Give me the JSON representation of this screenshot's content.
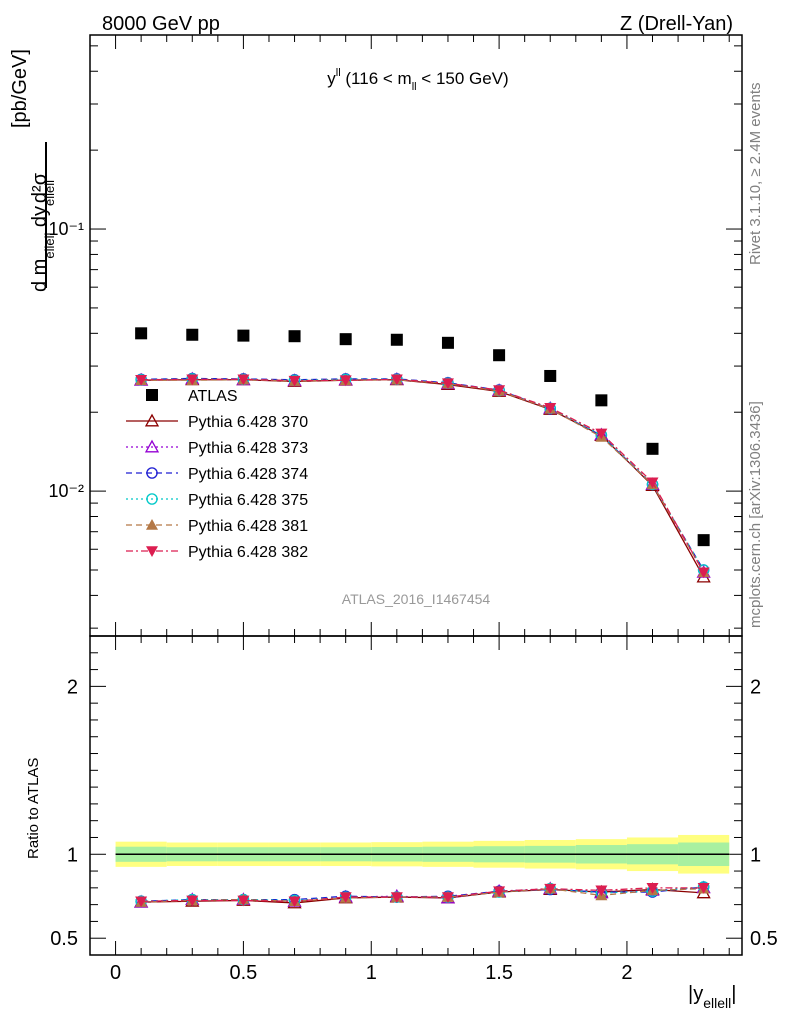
{
  "header": {
    "left": "8000 GeV pp",
    "right": "Z (Drell-Yan)"
  },
  "plot_title": {
    "main": "y",
    "sup": "ll",
    "mid": " (116 < m",
    "sub": "ll",
    "end": " < 150 GeV)"
  },
  "side_labels": {
    "rivet": "Rivet 3.1.10, ≥ 2.4M events",
    "mcplots": "mcplots.cern.ch [arXiv:1306.3436]"
  },
  "watermark": "ATLAS_2016_I1467454",
  "y_axis_label": {
    "numerator": "d²σ",
    "denominator": "d m",
    "denominator_sub": "ellell",
    "denominator_mid": " dy",
    "denominator_sub2": "ellell",
    "unit": "[pb/GeV]"
  },
  "x_axis_label": {
    "main": "|y",
    "sub": "ellell",
    "end": "|"
  },
  "ratio_axis_label": "Ratio to ATLAS",
  "chart_data": [
    {
      "type": "scatter",
      "panel": "main",
      "log_y": true,
      "xlim": [
        -0.1,
        2.45
      ],
      "ylim": [
        0.0028,
        0.55
      ],
      "x": [
        0.1,
        0.3,
        0.5,
        0.7,
        0.9,
        1.1,
        1.3,
        1.5,
        1.7,
        1.9,
        2.1,
        2.3
      ],
      "y_tick_labels": [
        "10⁻²",
        "10⁻¹"
      ],
      "y_ticks": [
        0.01,
        0.1
      ],
      "series": [
        {
          "name": "ATLAS",
          "marker": "square",
          "color": "#000000",
          "line": "none",
          "values": [
            0.04,
            0.0395,
            0.0392,
            0.039,
            0.038,
            0.0378,
            0.0368,
            0.033,
            0.0275,
            0.0222,
            0.0145,
            0.0065
          ]
        },
        {
          "name": "Pythia 6.428 370",
          "marker": "triangle-up-open",
          "color": "#8b0000",
          "line": "solid",
          "values": [
            0.0265,
            0.0266,
            0.0266,
            0.0262,
            0.0265,
            0.0266,
            0.0255,
            0.024,
            0.0205,
            0.0163,
            0.0105,
            0.0047
          ]
        },
        {
          "name": "Pythia 6.428 373",
          "marker": "triangle-up-open",
          "color": "#9400d3",
          "line": "dotted",
          "values": [
            0.0265,
            0.0268,
            0.0266,
            0.0264,
            0.0266,
            0.0267,
            0.0257,
            0.0242,
            0.0207,
            0.0164,
            0.0106,
            0.0049
          ]
        },
        {
          "name": "Pythia 6.428 374",
          "marker": "circle-open",
          "color": "#1e1ed2",
          "line": "dashed",
          "values": [
            0.0267,
            0.0269,
            0.0268,
            0.0266,
            0.0268,
            0.0268,
            0.0259,
            0.0243,
            0.0206,
            0.0163,
            0.0106,
            0.005
          ]
        },
        {
          "name": "Pythia 6.428 375",
          "marker": "circle-open",
          "color": "#00c8c8",
          "line": "dotted",
          "values": [
            0.0266,
            0.0268,
            0.0267,
            0.0265,
            0.0267,
            0.0267,
            0.0258,
            0.0242,
            0.0207,
            0.0164,
            0.0106,
            0.005
          ]
        },
        {
          "name": "Pythia 6.428 381",
          "marker": "triangle-up-filled",
          "color": "#b47846",
          "line": "dashed",
          "values": [
            0.0265,
            0.0265,
            0.0266,
            0.0263,
            0.0265,
            0.0266,
            0.0257,
            0.0241,
            0.0206,
            0.0161,
            0.0106,
            0.0049
          ]
        },
        {
          "name": "Pythia 6.428 382",
          "marker": "triangle-down-filled",
          "color": "#dc1e50",
          "line": "dashdot",
          "values": [
            0.0266,
            0.0267,
            0.0267,
            0.0264,
            0.0265,
            0.0267,
            0.0258,
            0.0243,
            0.0208,
            0.0166,
            0.0108,
            0.0049
          ]
        }
      ]
    },
    {
      "type": "scatter",
      "panel": "ratio",
      "xlim": [
        -0.1,
        2.45
      ],
      "ylim": [
        0.4,
        2.3
      ],
      "x_ticks": [
        0,
        0.5,
        1,
        1.5,
        2
      ],
      "x_tick_labels": [
        "0",
        "0.5",
        "1",
        "1.5",
        "2"
      ],
      "y_ticks": [
        0.5,
        1,
        2
      ],
      "y_tick_labels": [
        "0.5",
        "1",
        "2"
      ],
      "band_edges": [
        0.0,
        0.2,
        0.4,
        0.6,
        0.8,
        1.0,
        1.2,
        1.4,
        1.6,
        1.8,
        2.0,
        2.2,
        2.4
      ],
      "band_inner": [
        0.045,
        0.042,
        0.042,
        0.042,
        0.042,
        0.043,
        0.045,
        0.048,
        0.05,
        0.055,
        0.06,
        0.07
      ],
      "band_outer": [
        0.075,
        0.07,
        0.07,
        0.07,
        0.07,
        0.072,
        0.075,
        0.08,
        0.085,
        0.09,
        0.1,
        0.115
      ],
      "x": [
        0.1,
        0.3,
        0.5,
        0.7,
        0.9,
        1.1,
        1.3,
        1.5,
        1.7,
        1.9,
        2.1,
        2.3
      ],
      "series": [
        {
          "name": "Pythia 6.428 370",
          "values": [
            0.715,
            0.72,
            0.725,
            0.71,
            0.74,
            0.745,
            0.74,
            0.775,
            0.79,
            0.775,
            0.79,
            0.77
          ]
        },
        {
          "name": "Pythia 6.428 373",
          "values": [
            0.715,
            0.73,
            0.73,
            0.72,
            0.745,
            0.75,
            0.74,
            0.78,
            0.795,
            0.77,
            0.785,
            0.8
          ]
        },
        {
          "name": "Pythia 6.428 374",
          "values": [
            0.72,
            0.73,
            0.73,
            0.73,
            0.75,
            0.745,
            0.75,
            0.78,
            0.79,
            0.775,
            0.775,
            0.805
          ]
        },
        {
          "name": "Pythia 6.428 375",
          "values": [
            0.72,
            0.73,
            0.73,
            0.725,
            0.745,
            0.745,
            0.745,
            0.775,
            0.795,
            0.77,
            0.78,
            0.805
          ]
        },
        {
          "name": "Pythia 6.428 381",
          "values": [
            0.715,
            0.725,
            0.73,
            0.72,
            0.74,
            0.745,
            0.745,
            0.775,
            0.795,
            0.755,
            0.785,
            0.795
          ]
        },
        {
          "name": "Pythia 6.428 382",
          "values": [
            0.72,
            0.725,
            0.725,
            0.72,
            0.745,
            0.745,
            0.745,
            0.78,
            0.795,
            0.785,
            0.8,
            0.8
          ]
        }
      ]
    }
  ]
}
